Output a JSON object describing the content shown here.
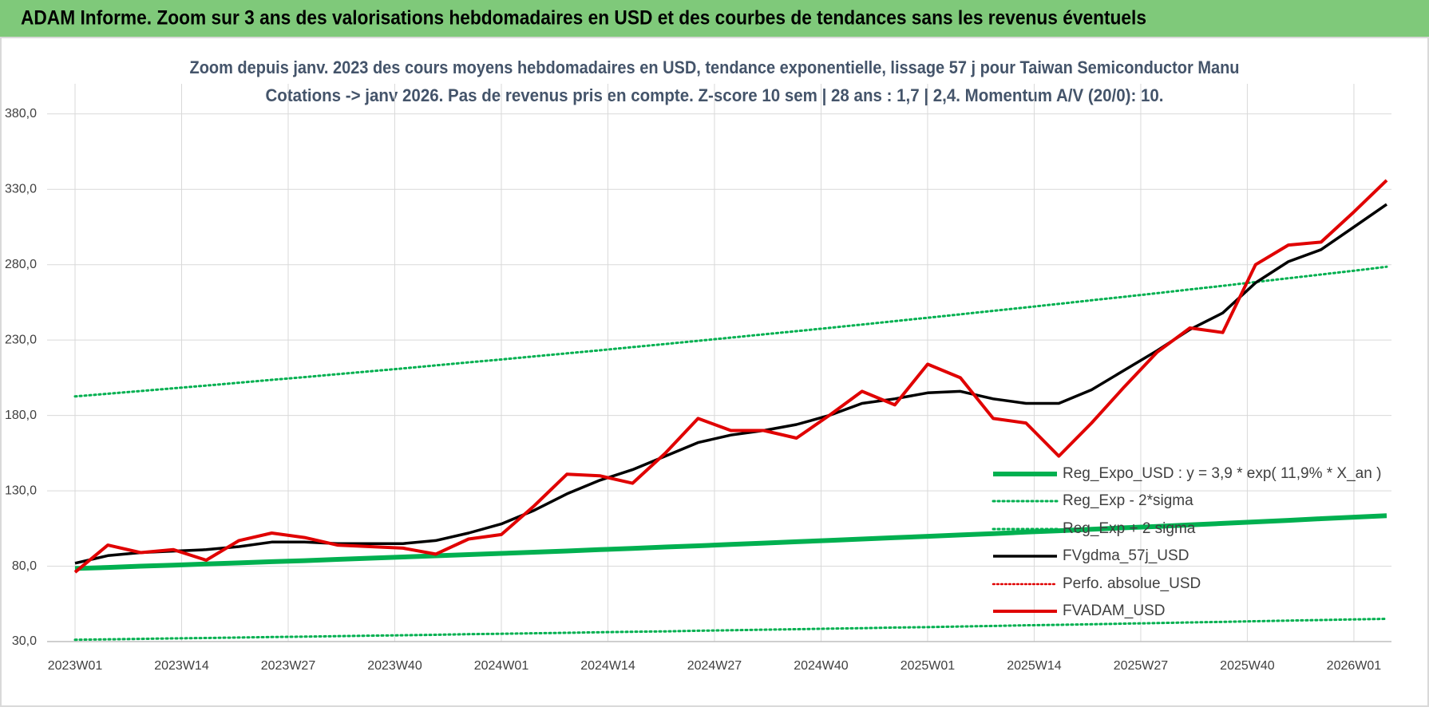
{
  "header": {
    "title": "ADAM Informe. Zoom sur 3 ans des valorisations hebdomadaires en USD et des courbes de tendances sans les revenus éventuels"
  },
  "chart_data": {
    "type": "line",
    "title": "Zoom depuis janv. 2023 des cours moyens hebdomadaires en USD, tendance exponentielle, lissage 57 j pour Taiwan Semiconductor Manu",
    "subtitle": "Cotations -> janv 2026. Pas de revenus pris en compte. Z-score 10 sem | 28 ans : 1,7 | 2,4. Momentum A/V (20/0): 10.",
    "x": [
      0,
      4,
      8,
      12,
      16,
      20,
      24,
      28,
      32,
      36,
      40,
      44,
      48,
      52,
      56,
      60,
      64,
      68,
      72,
      76,
      80,
      84,
      88,
      92,
      96,
      100,
      104,
      108,
      112,
      116,
      120,
      124,
      128,
      132,
      136,
      140,
      144,
      148,
      152,
      156,
      160
    ],
    "xlim": [
      0,
      160
    ],
    "xticks": [
      {
        "value": 0,
        "label": "2023W01"
      },
      {
        "value": 13,
        "label": "2023W14"
      },
      {
        "value": 26,
        "label": "2023W27"
      },
      {
        "value": 39,
        "label": "2023W40"
      },
      {
        "value": 52,
        "label": "2024W01"
      },
      {
        "value": 65,
        "label": "2024W14"
      },
      {
        "value": 78,
        "label": "2024W27"
      },
      {
        "value": 91,
        "label": "2024W40"
      },
      {
        "value": 104,
        "label": "2025W01"
      },
      {
        "value": 117,
        "label": "2025W14"
      },
      {
        "value": 130,
        "label": "2025W27"
      },
      {
        "value": 143,
        "label": "2025W40"
      },
      {
        "value": 156,
        "label": "2026W01"
      }
    ],
    "ylim": [
      30,
      400
    ],
    "yticks": [
      {
        "value": 30,
        "label": "30,0"
      },
      {
        "value": 80,
        "label": "80,0"
      },
      {
        "value": 130,
        "label": "130,0"
      },
      {
        "value": 180,
        "label": "180,0"
      },
      {
        "value": 230,
        "label": "230,0"
      },
      {
        "value": 280,
        "label": "280,0"
      },
      {
        "value": 330,
        "label": "330,0"
      },
      {
        "value": 380,
        "label": "380,0"
      }
    ],
    "grid": true,
    "legend": "lower right",
    "series": [
      {
        "name": "Reg_Expo_USD : y = 3,9 * exp( 11,9% *  X_an )",
        "color": "#00b050",
        "line_style": "solid",
        "width": 6,
        "values": [
          78.5,
          79.2,
          80.0,
          80.7,
          81.5,
          82.2,
          83.0,
          83.7,
          84.5,
          85.3,
          86.1,
          86.9,
          87.7,
          88.5,
          89.3,
          90.1,
          91.0,
          91.8,
          92.7,
          93.5,
          94.4,
          95.3,
          96.2,
          97.1,
          98.0,
          98.9,
          99.8,
          100.7,
          101.6,
          102.6,
          103.5,
          104.5,
          105.5,
          106.4,
          107.4,
          108.4,
          109.4,
          110.4,
          111.5,
          112.5,
          113.5
        ]
      },
      {
        "name": "Reg_Exp - 2*sigma",
        "color": "#00b050",
        "line_style": "dotted",
        "width": 3,
        "values": [
          31.2,
          31.5,
          31.8,
          32.1,
          32.4,
          32.7,
          33.0,
          33.3,
          33.6,
          33.9,
          34.2,
          34.5,
          34.9,
          35.2,
          35.5,
          35.8,
          36.2,
          36.5,
          36.8,
          37.2,
          37.5,
          37.9,
          38.2,
          38.6,
          38.9,
          39.3,
          39.6,
          40.0,
          40.4,
          40.8,
          41.1,
          41.5,
          41.9,
          42.3,
          42.7,
          43.1,
          43.5,
          43.9,
          44.3,
          44.7,
          45.1
        ]
      },
      {
        "name": "Reg_Exp + 2 sigma",
        "color": "#00b050",
        "line_style": "dotted",
        "width": 3,
        "values": [
          192.6,
          194.4,
          196.2,
          198.0,
          199.8,
          201.7,
          203.6,
          205.4,
          207.4,
          209.3,
          211.2,
          213.2,
          215.2,
          217.1,
          219.2,
          221.2,
          223.2,
          225.3,
          227.4,
          229.5,
          231.6,
          233.8,
          235.9,
          238.1,
          240.3,
          242.6,
          244.8,
          247.1,
          249.4,
          251.7,
          254.0,
          256.4,
          258.7,
          261.1,
          263.6,
          266.0,
          268.5,
          271.0,
          273.5,
          276.0,
          278.6
        ]
      },
      {
        "name": "FVgdma_57j_USD",
        "color": "#000000",
        "line_style": "solid",
        "width": 3.5,
        "values": [
          82,
          87,
          89,
          90,
          91,
          93,
          96,
          96,
          95,
          95,
          95,
          97,
          102,
          108,
          117,
          128,
          137,
          144,
          153,
          162,
          167,
          170,
          174,
          180,
          188,
          191,
          195,
          196,
          191,
          188,
          188,
          197,
          210,
          223,
          237,
          248,
          268,
          282,
          290,
          305,
          320
        ]
      },
      {
        "name": "Perfo. absolue_USD",
        "color": "#e00000",
        "line_style": "dotted",
        "width": 2.5
      },
      {
        "name": "FVADAM_USD",
        "color": "#e00000",
        "line_style": "solid",
        "width": 4,
        "values": [
          76,
          94,
          89,
          91,
          84,
          97,
          102,
          99,
          94,
          93,
          92,
          88,
          98,
          101,
          120,
          141,
          140,
          135,
          155,
          178,
          170,
          170,
          165,
          180,
          196,
          187,
          214,
          205,
          178,
          175,
          153,
          175,
          199,
          222,
          238,
          235,
          280,
          293,
          295,
          315,
          336
        ]
      }
    ]
  }
}
